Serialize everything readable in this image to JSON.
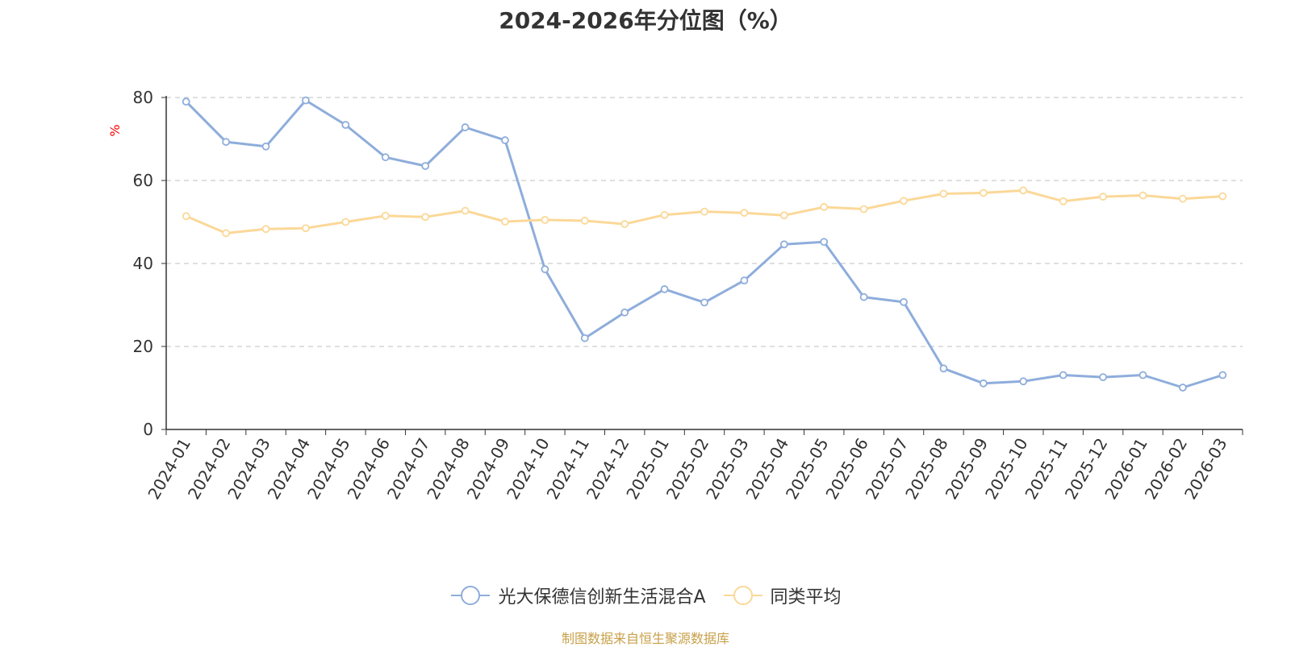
{
  "chart_data": {
    "type": "line",
    "title": "2024-2026年分位图（%）",
    "ylabel": "%",
    "xlabel": "",
    "ylim": [
      0,
      80
    ],
    "yticks": [
      0,
      20,
      40,
      60,
      80
    ],
    "grid": "horizontal dashed",
    "legend_position": "bottom-center",
    "categories": [
      "2024-01",
      "2024-02",
      "2024-03",
      "2024-04",
      "2024-05",
      "2024-06",
      "2024-07",
      "2024-08",
      "2024-09",
      "2024-10",
      "2024-11",
      "2024-12",
      "2025-01",
      "2025-02",
      "2025-03",
      "2025-04",
      "2025-05",
      "2025-06",
      "2025-07",
      "2025-08",
      "2025-09",
      "2025-10",
      "2025-11",
      "2025-12",
      "2026-01",
      "2026-02",
      "2026-03"
    ],
    "series": [
      {
        "name": "光大保德信创新生活混合A",
        "color": "#8eaddb",
        "values": [
          79,
          69.3,
          68.2,
          79.3,
          73.4,
          65.6,
          63.5,
          72.8,
          69.7,
          38.6,
          22,
          28.2,
          33.8,
          30.6,
          35.9,
          44.6,
          45.2,
          31.9,
          30.7,
          14.7,
          11.1,
          11.6,
          13.1,
          12.6,
          13.1,
          10.1,
          13.1
        ]
      },
      {
        "name": "同类平均",
        "color": "#fbd898",
        "values": [
          51.4,
          47.3,
          48.3,
          48.5,
          50,
          51.5,
          51.2,
          52.7,
          50.1,
          50.5,
          50.3,
          49.5,
          51.7,
          52.5,
          52.2,
          51.6,
          53.6,
          53.1,
          55.1,
          56.8,
          57,
          57.6,
          55,
          56.1,
          56.4,
          55.6,
          56.2
        ]
      }
    ]
  },
  "footer": {
    "source": "制图数据来自恒生聚源数据库"
  }
}
